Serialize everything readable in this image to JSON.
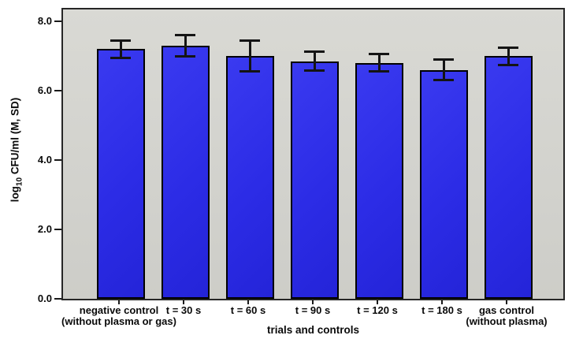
{
  "chart_data": {
    "type": "bar",
    "title": "",
    "xlabel": "trials and controls",
    "ylabel_prefix": "log",
    "ylabel_sub": "10",
    "ylabel_suffix": " CFU/ml (M, SD)",
    "ylim": [
      0,
      8
    ],
    "ytick_step": 2,
    "yticks": [
      "0.0",
      "2.0",
      "4.0",
      "6.0",
      "8.0"
    ],
    "grid": "off",
    "legend": "none",
    "categories": [
      {
        "line1": "negative control",
        "line2": "(without plasma or gas)"
      },
      {
        "line1": "t = 30 s",
        "line2": ""
      },
      {
        "line1": "t = 60 s",
        "line2": ""
      },
      {
        "line1": "t = 90 s",
        "line2": ""
      },
      {
        "line1": "t = 120 s",
        "line2": ""
      },
      {
        "line1": "t = 180 s",
        "line2": ""
      },
      {
        "line1": "gas control",
        "line2": "(without plasma)"
      }
    ],
    "values": [
      7.2,
      7.3,
      7.0,
      6.85,
      6.8,
      6.6,
      7.0
    ],
    "errors": [
      0.25,
      0.3,
      0.45,
      0.27,
      0.25,
      0.3,
      0.25
    ],
    "colors": {
      "bar_fill": "#2c2ce6",
      "bar_border": "#000000",
      "error": "#141414",
      "plot_bg": "#d3d3ce",
      "plot_border": "#262626",
      "text": "#0a0a0a",
      "page_bg": "#ffffff"
    }
  }
}
